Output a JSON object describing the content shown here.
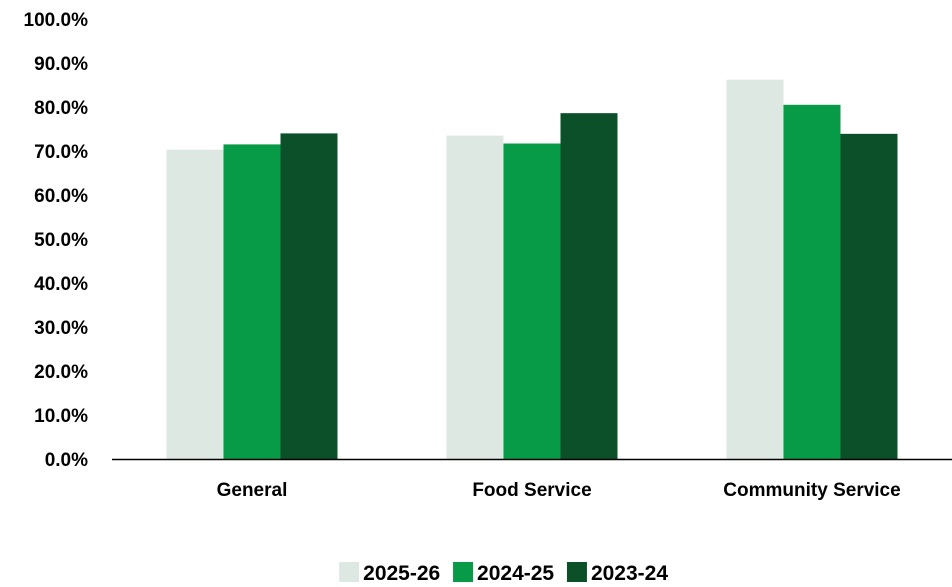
{
  "chart_data": {
    "type": "bar",
    "categories": [
      "General",
      "Food Service",
      "Community Service"
    ],
    "series": [
      {
        "name": "2025-26",
        "values": [
          70.3,
          73.5,
          86.2
        ]
      },
      {
        "name": "2024-25",
        "values": [
          71.5,
          71.7,
          80.5
        ]
      },
      {
        "name": "2023-24",
        "values": [
          74.0,
          78.6,
          73.9
        ]
      }
    ],
    "colors": [
      "#dde8e3",
      "#079a47",
      "#0c5029",
      "#21b04b"
    ],
    "ylim": [
      0,
      100
    ],
    "yticks": [
      "0.0%",
      "10.0%",
      "20.0%",
      "30.0%",
      "40.0%",
      "50.0%",
      "60.0%",
      "70.0%",
      "80.0%",
      "90.0%",
      "100.0%"
    ],
    "legend_position": "bottom",
    "grid": false
  }
}
